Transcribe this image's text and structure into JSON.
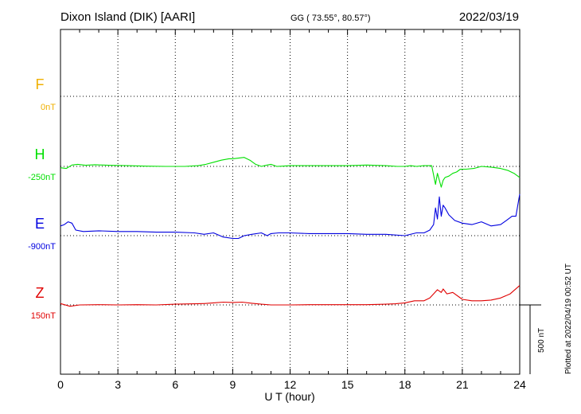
{
  "header": {
    "station": "Dixon Island (DIK)  [AARI]",
    "coords": "GG ( 73.55°,  80.57°)",
    "date": "2022/03/19"
  },
  "footer": {
    "plotted": "Plotted at 2022/04/19 00:52 UT",
    "scale_label": "500 nT"
  },
  "chart_data": {
    "type": "line",
    "xlabel": "U T (hour)",
    "xlim": [
      0,
      24
    ],
    "x_ticks": [
      "0",
      "3",
      "6",
      "9",
      "12",
      "15",
      "18",
      "21",
      "24"
    ],
    "scale_bar_nT": 500,
    "grid": "dotted",
    "series": [
      {
        "name": "F",
        "baseline_label": "0nT",
        "color": "#f0b000",
        "x": [],
        "y": []
      },
      {
        "name": "H",
        "baseline_label": "-250nT",
        "color": "#00e000",
        "x": [
          0,
          0.3,
          0.6,
          0.9,
          1.3,
          1.8,
          2.5,
          3.5,
          4.5,
          5.5,
          6.5,
          7.2,
          7.6,
          8.0,
          8.4,
          8.8,
          9.0,
          9.3,
          9.6,
          9.9,
          10.2,
          10.5,
          10.8,
          11.0,
          11.3,
          11.6,
          12.0,
          13.0,
          14.0,
          15.0,
          16.0,
          17.0,
          17.6,
          18.0,
          18.3,
          18.6,
          19.0,
          19.4,
          19.6,
          19.7,
          19.8,
          19.9,
          20.0,
          20.1,
          20.3,
          20.5,
          20.7,
          20.9,
          21.2,
          21.6,
          22.0,
          22.5,
          23.0,
          23.4,
          23.7,
          24.0
        ],
        "y": [
          -260,
          -265,
          -240,
          -235,
          -242,
          -238,
          -242,
          -245,
          -248,
          -250,
          -250,
          -245,
          -235,
          -220,
          -205,
          -195,
          -195,
          -190,
          -185,
          -205,
          -235,
          -250,
          -240,
          -235,
          -250,
          -248,
          -245,
          -245,
          -245,
          -245,
          -240,
          -245,
          -250,
          -250,
          -245,
          -250,
          -245,
          -245,
          -380,
          -300,
          -350,
          -400,
          -350,
          -330,
          -320,
          -300,
          -290,
          -270,
          -270,
          -265,
          -250,
          -255,
          -265,
          -280,
          -300,
          -330
        ]
      },
      {
        "name": "E",
        "baseline_label": "-900nT",
        "color": "#0000e0",
        "x": [
          0,
          0.2,
          0.4,
          0.6,
          0.8,
          1.2,
          2.0,
          3.0,
          4.0,
          5.0,
          6.0,
          7.0,
          7.5,
          8.0,
          8.5,
          9.0,
          9.3,
          9.6,
          10.0,
          10.5,
          10.8,
          11.0,
          11.4,
          12.0,
          13.0,
          14.0,
          15.0,
          16.0,
          17.0,
          18.0,
          18.6,
          19.0,
          19.3,
          19.5,
          19.6,
          19.7,
          19.8,
          19.9,
          20.0,
          20.1,
          20.3,
          20.6,
          21.0,
          21.5,
          22.0,
          22.5,
          23.0,
          23.3,
          23.6,
          23.8,
          24.0
        ],
        "y": [
          -830,
          -820,
          -800,
          -810,
          -860,
          -870,
          -865,
          -870,
          -870,
          -875,
          -875,
          -880,
          -890,
          -880,
          -910,
          -920,
          -920,
          -900,
          -890,
          -880,
          -900,
          -885,
          -880,
          -880,
          -885,
          -885,
          -885,
          -890,
          -890,
          -900,
          -880,
          -880,
          -860,
          -820,
          -700,
          -780,
          -620,
          -760,
          -680,
          -700,
          -750,
          -790,
          -810,
          -820,
          -800,
          -830,
          -820,
          -790,
          -760,
          -760,
          -600
        ]
      },
      {
        "name": "Z",
        "baseline_label": "150nT",
        "color": "#e00000",
        "x": [
          0,
          0.5,
          1.0,
          2.0,
          3.0,
          4.0,
          5.0,
          6.0,
          7.0,
          7.5,
          8.0,
          8.5,
          9.0,
          9.5,
          10.0,
          10.5,
          11.0,
          12.0,
          13.0,
          14.0,
          15.0,
          16.0,
          17.0,
          17.5,
          18.0,
          18.5,
          19.0,
          19.3,
          19.5,
          19.7,
          19.9,
          20.0,
          20.2,
          20.5,
          21.0,
          21.5,
          22.0,
          22.5,
          23.0,
          23.5,
          24.0
        ],
        "y": [
          160,
          140,
          150,
          152,
          150,
          152,
          150,
          155,
          158,
          160,
          165,
          170,
          168,
          170,
          162,
          155,
          150,
          150,
          152,
          152,
          152,
          152,
          155,
          158,
          165,
          180,
          180,
          200,
          230,
          260,
          240,
          265,
          230,
          240,
          190,
          180,
          180,
          185,
          200,
          230,
          290
        ]
      }
    ]
  }
}
